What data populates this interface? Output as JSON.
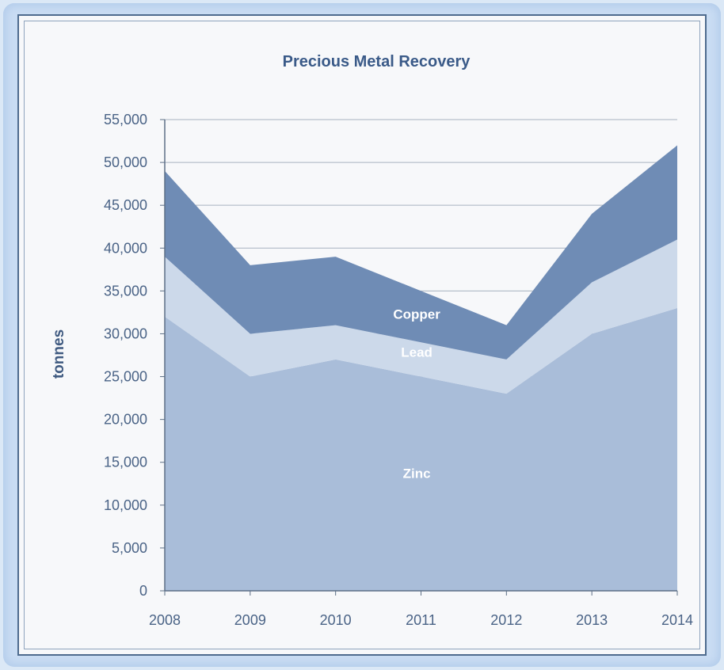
{
  "chart_data": {
    "type": "area",
    "stacked": true,
    "title": "Precious Metal Recovery",
    "xlabel": "",
    "ylabel": "tonnes",
    "categories": [
      "2008",
      "2009",
      "2010",
      "2011",
      "2012",
      "2013",
      "2014"
    ],
    "ylim": [
      0,
      55000
    ],
    "yticks": [
      "0",
      "5,000",
      "10,000",
      "15,000",
      "20,000",
      "25,000",
      "30,000",
      "35,000",
      "40,000",
      "45,000",
      "50,000",
      "55,000"
    ],
    "grid": true,
    "series": [
      {
        "name": "Zinc",
        "values": [
          32000,
          25000,
          27000,
          25000,
          23000,
          30000,
          33000
        ],
        "color": "#a9bdd9"
      },
      {
        "name": "Lead",
        "values": [
          7000,
          5000,
          4000,
          4000,
          4000,
          6000,
          8000
        ],
        "color": "#ccd9ea"
      },
      {
        "name": "Copper",
        "values": [
          10000,
          8000,
          8000,
          6000,
          4000,
          8000,
          11000
        ],
        "color": "#6f8cb5"
      }
    ]
  }
}
